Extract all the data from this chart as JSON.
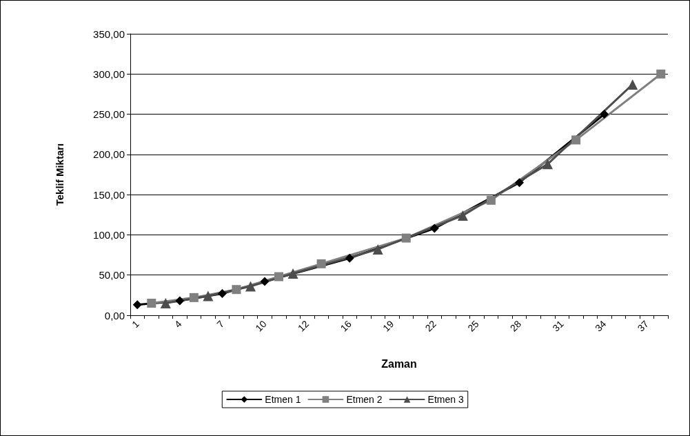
{
  "chart_data": {
    "type": "line",
    "xlabel": "Zaman",
    "ylabel": "Teklif Miktarı",
    "categories": [
      "1",
      null,
      null,
      "4",
      null,
      null,
      "7",
      null,
      null,
      "10",
      null,
      null,
      "12",
      null,
      null,
      "16",
      null,
      null,
      "19",
      null,
      null,
      "22",
      null,
      null,
      "25",
      null,
      null,
      "28",
      null,
      null,
      "31",
      null,
      null,
      "34",
      null,
      null,
      "37",
      null
    ],
    "series": [
      {
        "name": "Etmen 1",
        "color": "#000000",
        "marker": "diamond",
        "values": [
          13,
          null,
          null,
          18,
          null,
          null,
          27,
          null,
          null,
          42,
          null,
          null,
          null,
          null,
          null,
          71,
          null,
          null,
          null,
          null,
          null,
          108,
          null,
          null,
          null,
          null,
          null,
          165,
          null,
          null,
          null,
          null,
          null,
          250,
          null,
          null,
          null,
          null
        ]
      },
      {
        "name": "Etmen 2",
        "color": "#808080",
        "marker": "square",
        "values": [
          null,
          15,
          null,
          null,
          22,
          null,
          null,
          32,
          null,
          null,
          48,
          null,
          null,
          64,
          null,
          null,
          null,
          null,
          null,
          96,
          null,
          null,
          null,
          null,
          null,
          143,
          null,
          null,
          null,
          null,
          null,
          218,
          null,
          null,
          null,
          null,
          null,
          300
        ]
      },
      {
        "name": "Etmen 3",
        "color": "#4d4d4d",
        "marker": "triangle",
        "values": [
          null,
          null,
          15,
          null,
          null,
          24,
          null,
          null,
          36,
          null,
          null,
          52,
          null,
          null,
          null,
          null,
          null,
          82,
          null,
          null,
          null,
          null,
          null,
          124,
          null,
          null,
          null,
          null,
          null,
          188,
          null,
          null,
          null,
          null,
          null,
          287,
          null,
          null
        ]
      }
    ],
    "ylim": [
      0,
      350
    ],
    "yticks": [
      {
        "value": 0,
        "label": "0,00"
      },
      {
        "value": 50,
        "label": "50,00"
      },
      {
        "value": 100,
        "label": "100,00"
      },
      {
        "value": 150,
        "label": "150,00"
      },
      {
        "value": 200,
        "label": "200,00"
      },
      {
        "value": 250,
        "label": "250,00"
      },
      {
        "value": 300,
        "label": "300,00"
      },
      {
        "value": 350,
        "label": "350,00"
      }
    ],
    "grid": "y",
    "legend": "bottom"
  }
}
